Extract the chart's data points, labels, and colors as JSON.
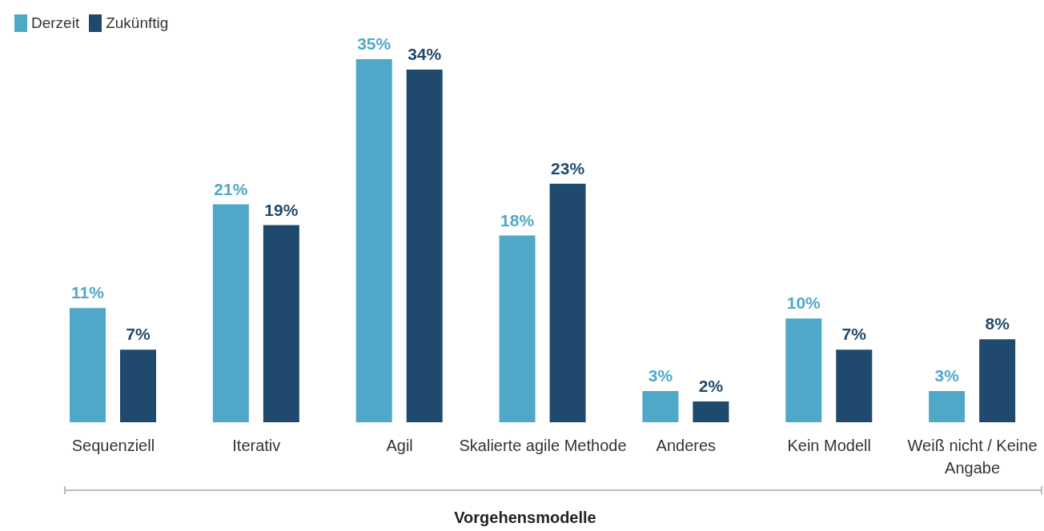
{
  "chart_data": {
    "type": "bar",
    "xlabel": "Vorgehensmodelle",
    "categories": [
      "Sequenziell",
      "Iterativ",
      "Agil",
      "Skalierte agile Methode",
      "Anderes",
      "Kein Modell",
      "Weiß nicht / Keine Angabe"
    ],
    "series": [
      {
        "name": "Derzeit",
        "color": "#4fa8c7",
        "values": [
          11,
          21,
          35,
          18,
          3,
          10,
          3
        ],
        "value_labels": [
          "11%",
          "21%",
          "35%",
          "18%",
          "3%",
          "10%",
          "3%"
        ]
      },
      {
        "name": "Zukünftig",
        "color": "#1f4a6d",
        "values": [
          7,
          19,
          34,
          23,
          2,
          7,
          8
        ],
        "value_labels": [
          "7%",
          "19%",
          "34%",
          "23%",
          "2%",
          "7%",
          "8%"
        ]
      }
    ],
    "legend": "top left",
    "grid": false
  }
}
